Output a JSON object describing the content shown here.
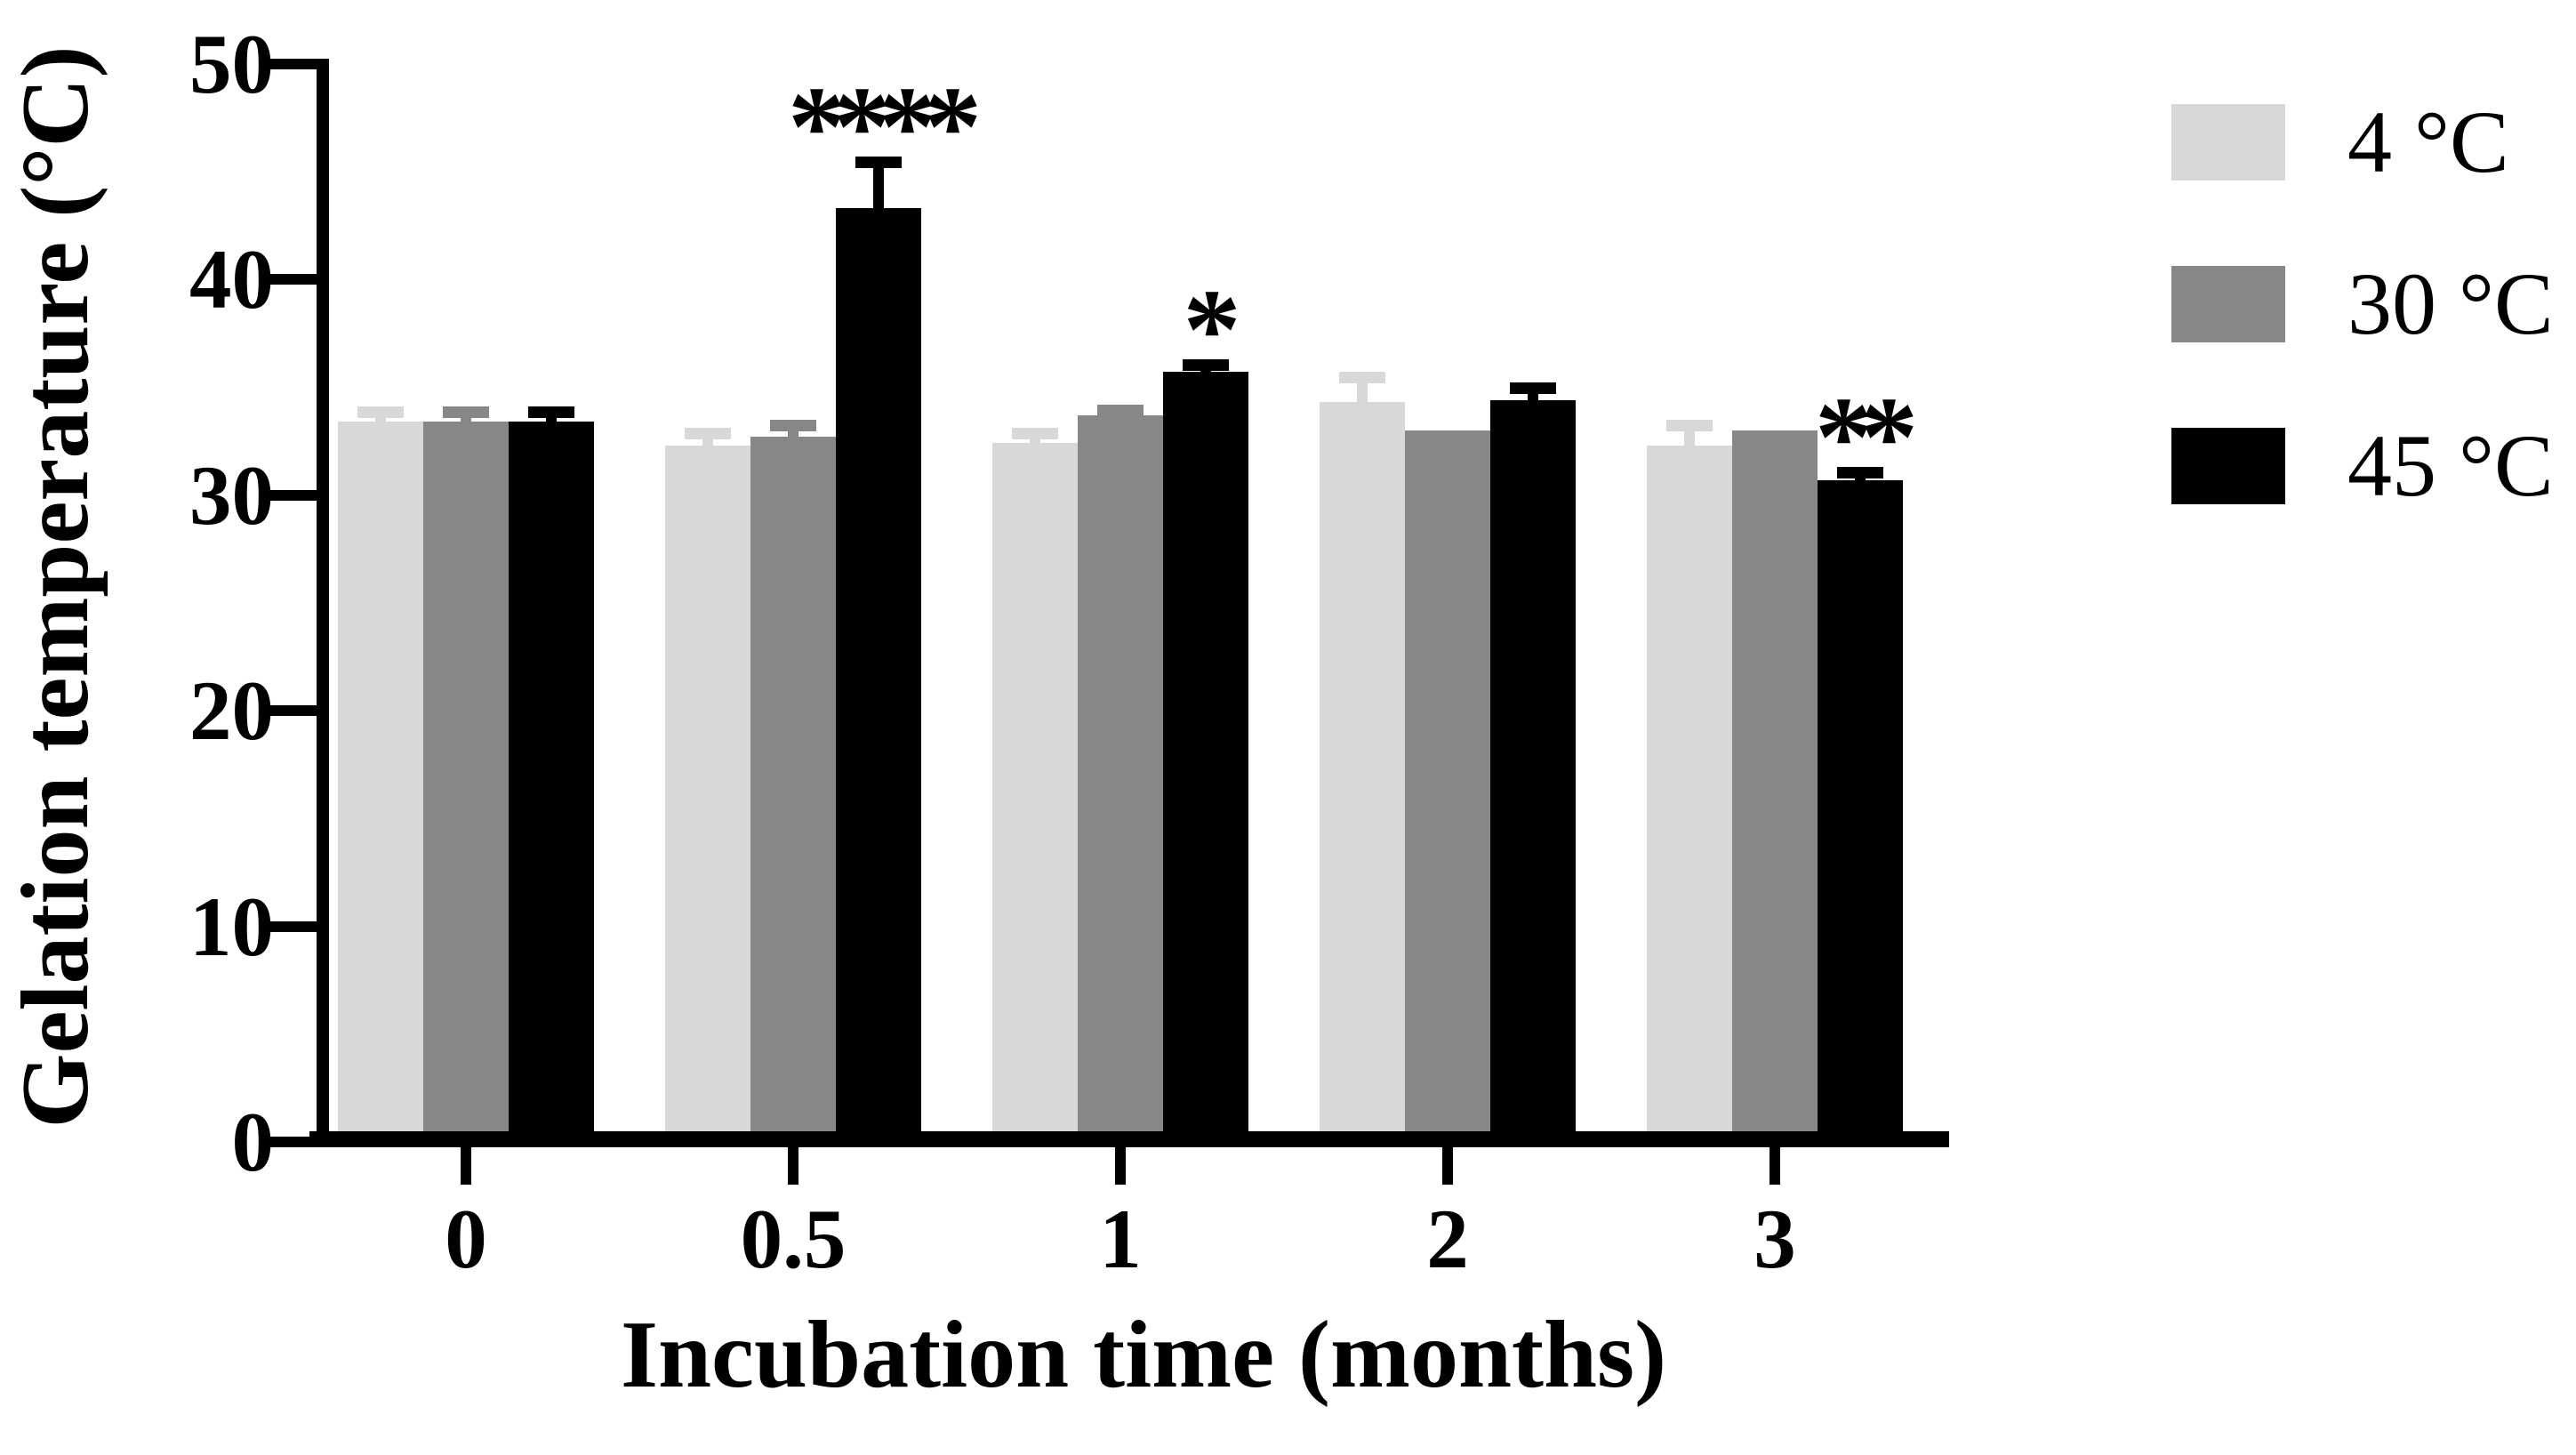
{
  "chart_data": {
    "type": "bar",
    "title": "",
    "xlabel": "Incubation time (months)",
    "ylabel": "Gelation temperature (°C)",
    "categories": [
      "0",
      "0.5",
      "1",
      "2",
      "3"
    ],
    "series": [
      {
        "name": "4 °C",
        "color": "#d8d8d8",
        "values": [
          33.4,
          32.3,
          32.4,
          34.3,
          32.3
        ],
        "errors": [
          0.7,
          0.8,
          0.7,
          1.4,
          1.2
        ]
      },
      {
        "name": "30 °C",
        "color": "#878787",
        "values": [
          33.4,
          32.7,
          33.7,
          33.0,
          33.0
        ],
        "errors": [
          0.7,
          0.8,
          0.5,
          0,
          0
        ]
      },
      {
        "name": "45 °C",
        "color": "#000000",
        "values": [
          33.4,
          43.3,
          35.7,
          34.4,
          30.7
        ],
        "errors": [
          0.7,
          2.4,
          0.6,
          0.8,
          0.6
        ]
      }
    ],
    "annotations": [
      {
        "category": "0.5",
        "series": "45 °C",
        "text": "****"
      },
      {
        "category": "1",
        "series": "45 °C",
        "text": "*"
      },
      {
        "category": "3",
        "series": "45 °C",
        "text": "**"
      }
    ],
    "ylim": [
      0,
      50
    ],
    "yticks": [
      0,
      10,
      20,
      30,
      40,
      50
    ],
    "legend_position": "right",
    "grid": false
  }
}
